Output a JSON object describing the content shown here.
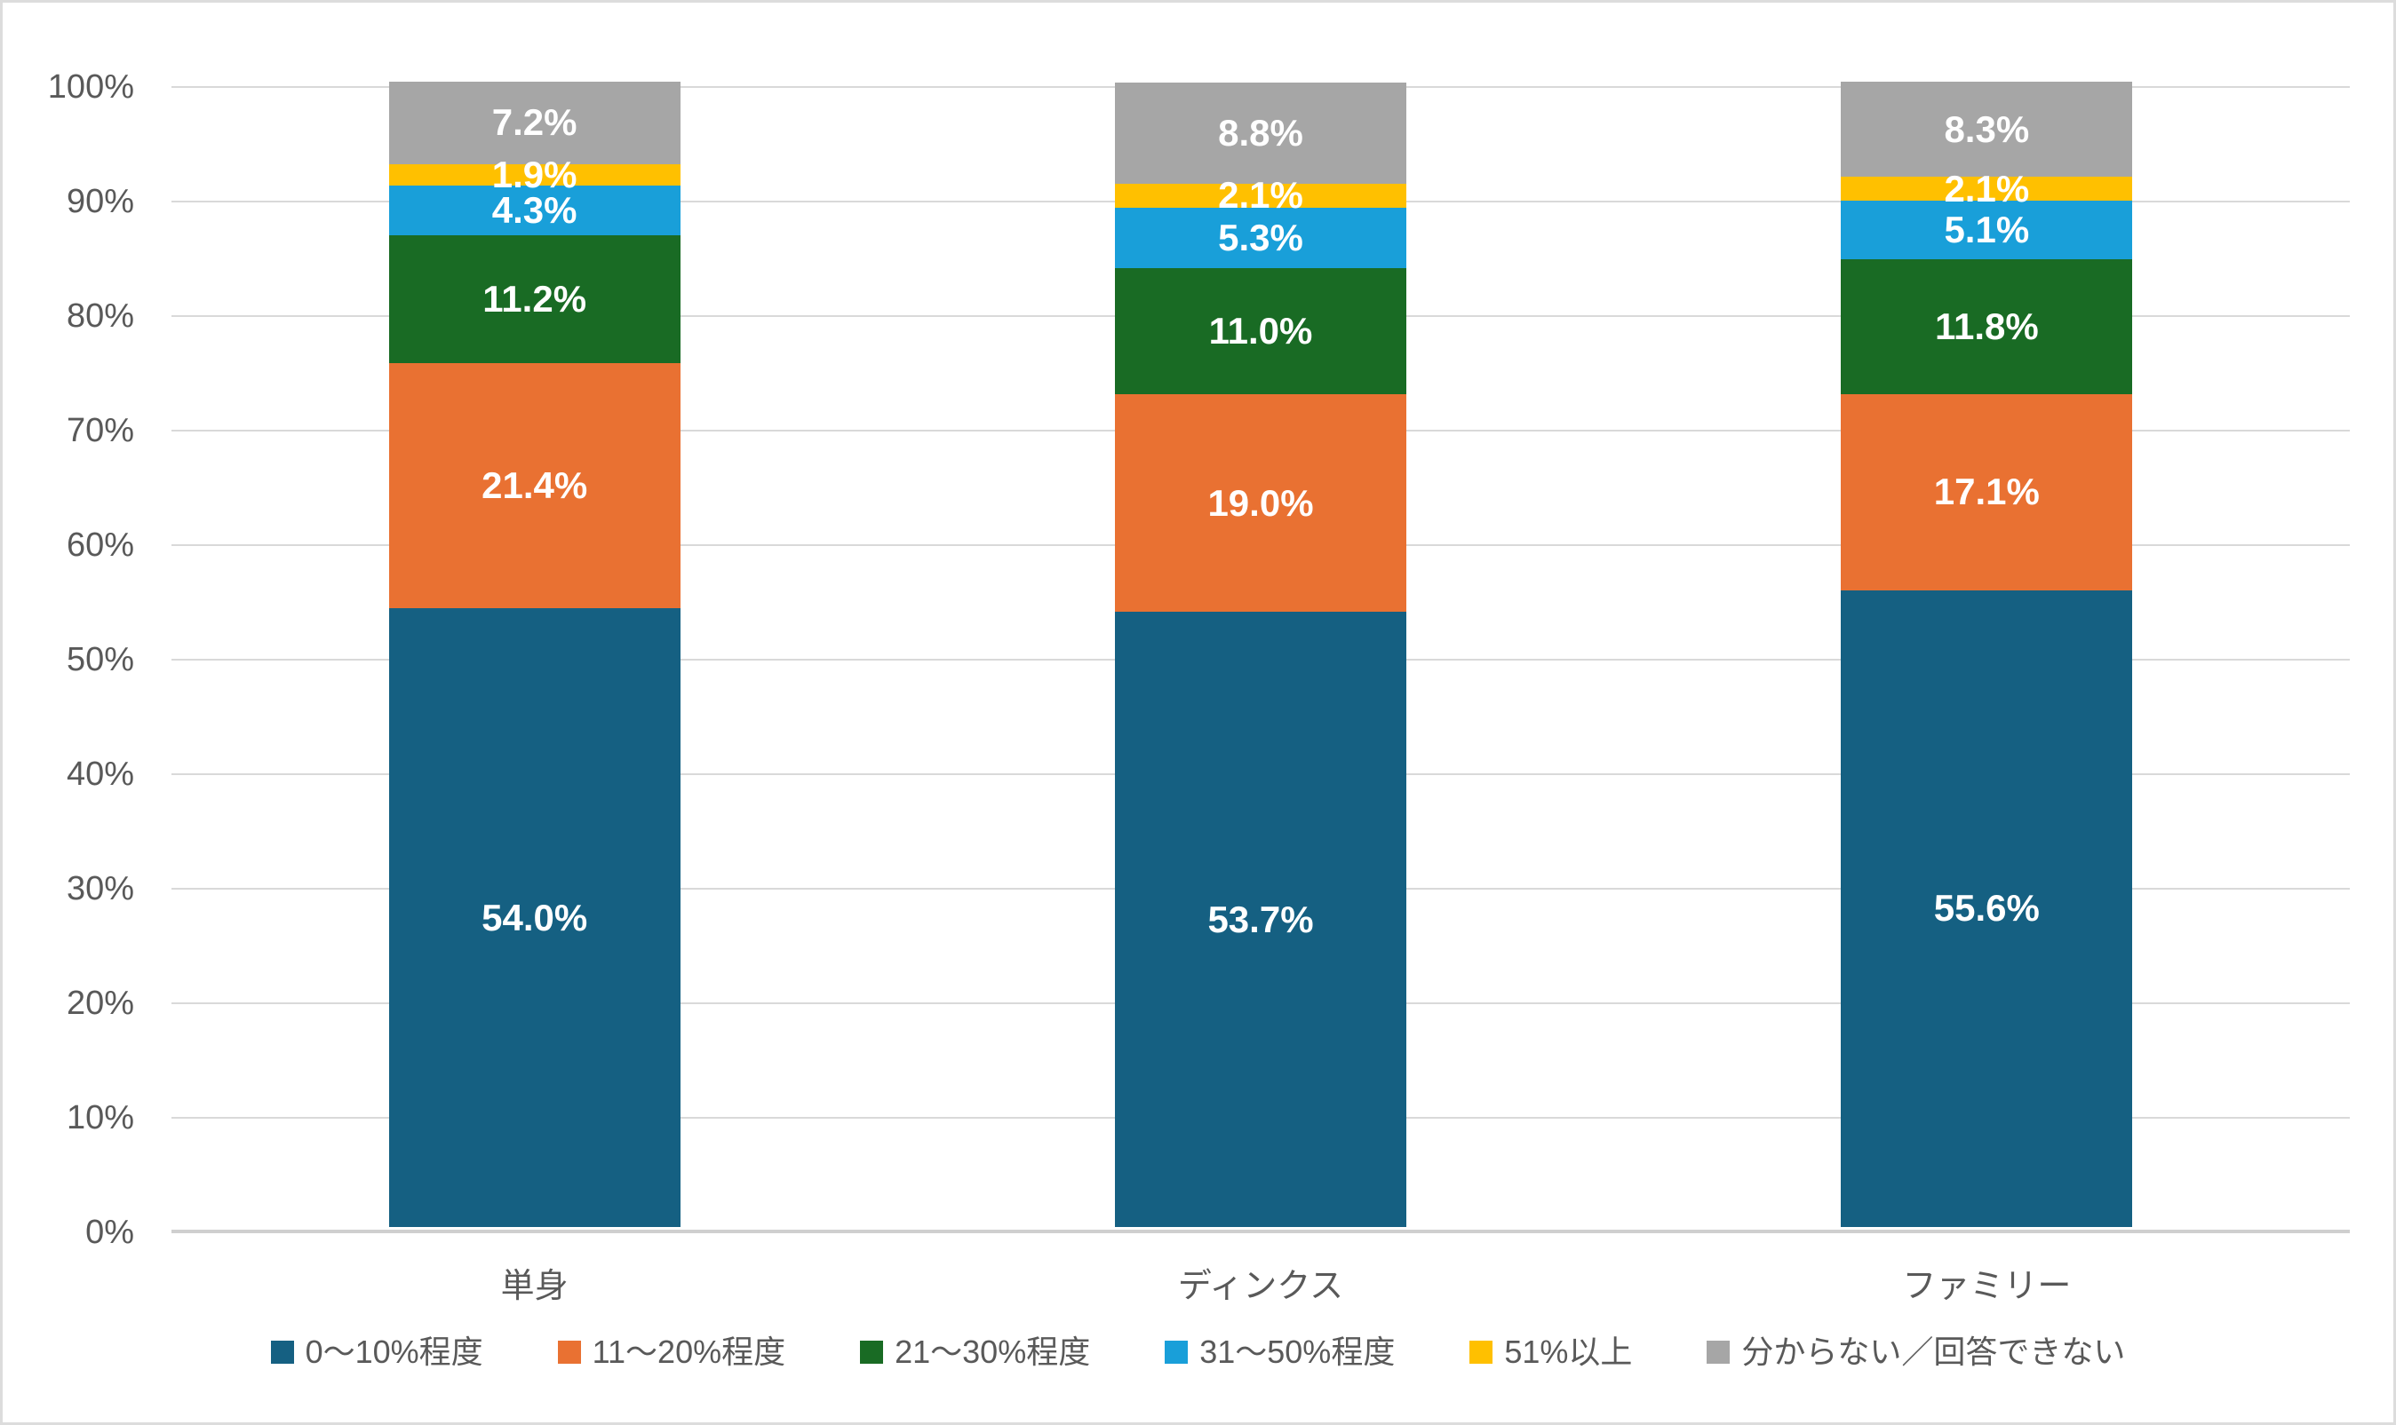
{
  "chart_data": {
    "type": "bar",
    "stacked": true,
    "orientation": "vertical",
    "title": "",
    "xlabel": "",
    "ylabel": "",
    "categories": [
      "単身",
      "ディンクス",
      "ファミリー"
    ],
    "series": [
      {
        "name": "0〜10%程度",
        "color": "#156082",
        "values": [
          54.0,
          53.7,
          55.6
        ],
        "labels": [
          "54.0%",
          "53.7%",
          "55.6%"
        ]
      },
      {
        "name": "11〜20%程度",
        "color": "#E97132",
        "values": [
          21.4,
          19.0,
          17.1
        ],
        "labels": [
          "21.4%",
          "19.0%",
          "17.1%"
        ]
      },
      {
        "name": "21〜30%程度",
        "color": "#196B24",
        "values": [
          11.2,
          11.0,
          11.8
        ],
        "labels": [
          "11.2%",
          "11.0%",
          "11.8%"
        ]
      },
      {
        "name": "31〜50%程度",
        "color": "#199FD9",
        "values": [
          4.3,
          5.3,
          5.1
        ],
        "labels": [
          "4.3%",
          "5.3%",
          "5.1%"
        ]
      },
      {
        "name": "51%以上",
        "color": "#FFC000",
        "values": [
          1.9,
          2.1,
          2.1
        ],
        "labels": [
          "1.9%",
          "2.1%",
          "2.1%"
        ]
      },
      {
        "name": "分からない／回答できない",
        "color": "#A6A6A6",
        "values": [
          7.2,
          8.8,
          8.3
        ],
        "labels": [
          "7.2%",
          "8.8%",
          "8.3%"
        ]
      }
    ],
    "y_axis": {
      "min": 0,
      "max": 100,
      "tick_step": 10,
      "ticks": [
        "0%",
        "10%",
        "20%",
        "30%",
        "40%",
        "50%",
        "60%",
        "70%",
        "80%",
        "90%",
        "100%"
      ],
      "grid": true
    },
    "legend_position": "bottom",
    "data_label_color": "#FFFFFF",
    "axis_text_color": "#595959",
    "gridline_color": "#D9D9D9"
  }
}
